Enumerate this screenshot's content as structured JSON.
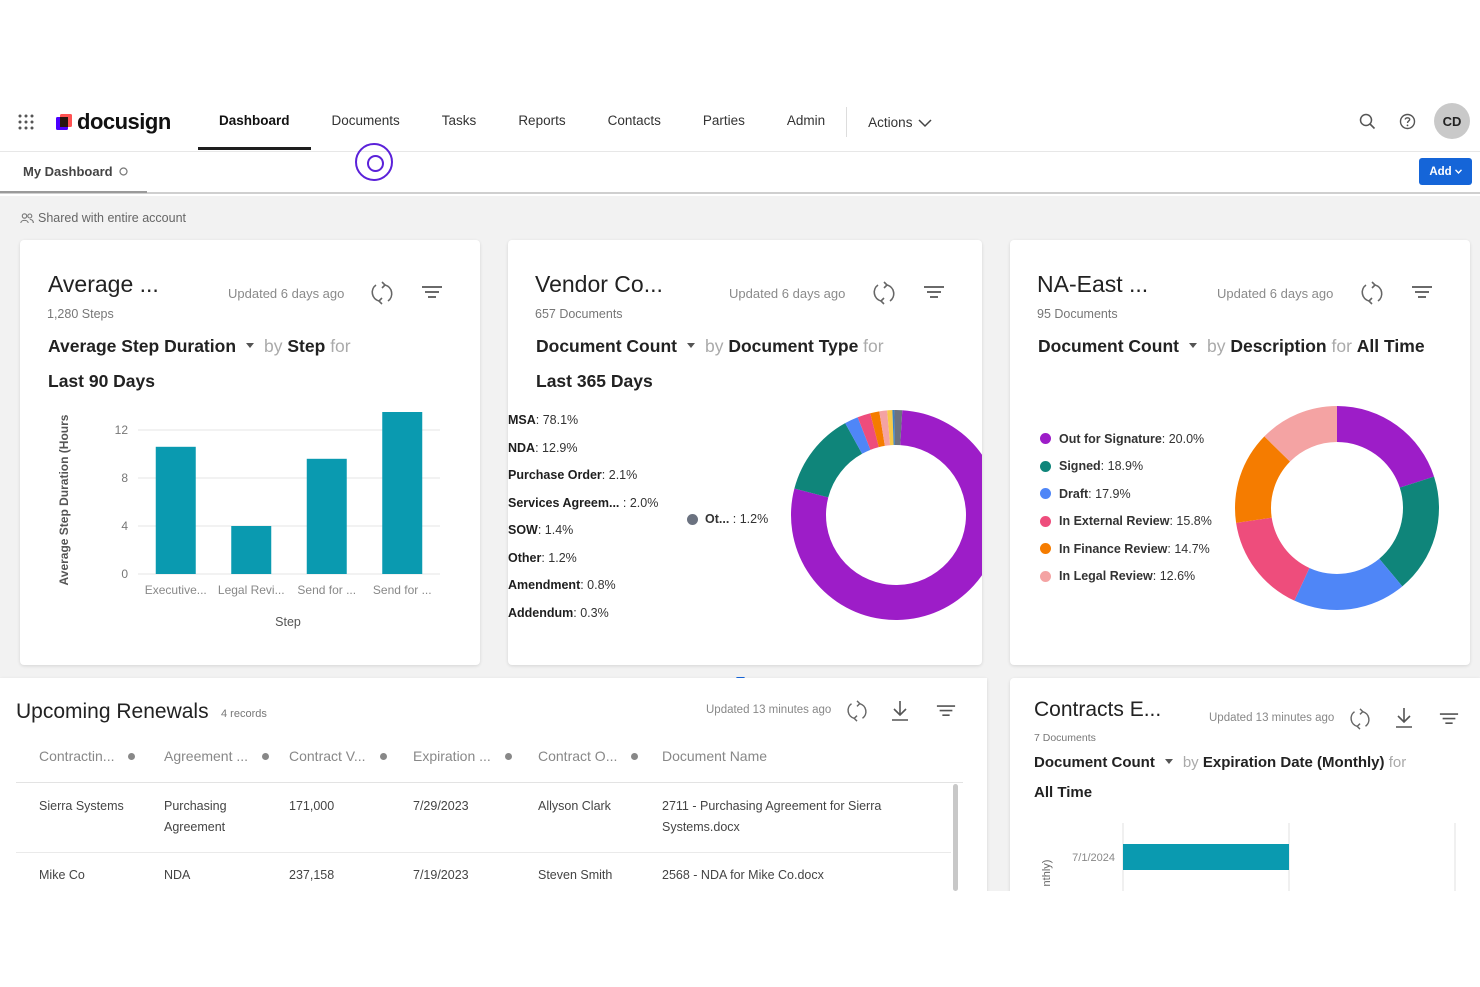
{
  "brand": {
    "name": "docusign"
  },
  "nav": {
    "items": [
      "Dashboard",
      "Documents",
      "Tasks",
      "Reports",
      "Contacts",
      "Parties",
      "Admin"
    ],
    "active": "Dashboard",
    "actions_label": "Actions",
    "avatar_initials": "CD"
  },
  "subbar": {
    "tab_label": "My Dashboard",
    "add_label": "Add"
  },
  "shared_label": "Shared with entire account",
  "cards": {
    "avg": {
      "title": "Average ...",
      "updated": "Updated 6 days ago",
      "subtitle": "1,280 Steps",
      "metric": "Average Step Duration",
      "by_word": "by",
      "group": "Step",
      "for_word": "for",
      "period": "Last 90 Days"
    },
    "vendor": {
      "title": "Vendor Co...",
      "updated": "Updated 6 days ago",
      "subtitle": "657 Documents",
      "metric": "Document Count",
      "by_word": "by",
      "group": "Document Type",
      "for_word": "for",
      "period": "Last 365 Days"
    },
    "na": {
      "title": "NA-East ...",
      "updated": "Updated 6 days ago",
      "subtitle": "95 Documents",
      "metric": "Document Count",
      "by_word": "by",
      "group": "Description",
      "for_word": "for",
      "period": "All Time"
    },
    "renewals": {
      "title": "Upcoming Renewals",
      "records": "4 records",
      "updated": "Updated 13 minutes ago"
    },
    "contracts": {
      "title": "Contracts E...",
      "updated": "Updated 13 minutes ago",
      "subtitle": "7 Documents",
      "metric": "Document Count",
      "by_word": "by",
      "group": "Expiration Date (Monthly)",
      "for_word": "for",
      "period": "All Time"
    }
  },
  "chart_data": [
    {
      "type": "bar",
      "categories": [
        "Executive...",
        "Legal Revi...",
        "Send for ...",
        "Send for ..."
      ],
      "values": [
        10.6,
        4.0,
        9.6,
        13.5
      ],
      "xlabel": "Step",
      "ylabel": "Average Step Duration (Hours",
      "yticks": [
        0,
        4,
        8,
        12
      ],
      "ylim": [
        0,
        14
      ],
      "color": "#0a9ab0"
    },
    {
      "type": "pie",
      "style": "donut",
      "slices": [
        {
          "label": "MSA",
          "pct": "78.1%",
          "value": 78.1,
          "color": "#9d1dc8"
        },
        {
          "label": "NDA",
          "pct": "12.9%",
          "value": 12.9,
          "color": "#0f857a"
        },
        {
          "label": "Purchase Order",
          "pct": "2.1%",
          "value": 2.1,
          "color": "#4f86f7"
        },
        {
          "label": "Services Agreem...",
          "pct": "2.0%",
          "value": 2.0,
          "color": "#ee4d7c"
        },
        {
          "label": "SOW",
          "pct": "1.4%",
          "value": 1.4,
          "color": "#f57c00"
        },
        {
          "label": "Other",
          "pct": "1.2%",
          "value": 1.2,
          "color": "#f4a3a3"
        },
        {
          "label": "Amendment",
          "pct": "0.8%",
          "value": 0.8,
          "color": "#f7c948"
        },
        {
          "label": "Addendum",
          "pct": "0.3%",
          "value": 0.3,
          "color": "#3b82c4"
        },
        {
          "label": "Ot...",
          "pct": "1.2%",
          "value": 1.2,
          "color": "#6b7280"
        }
      ]
    },
    {
      "type": "pie",
      "style": "donut",
      "slices": [
        {
          "label": "Out for Signature",
          "pct": "20.0%",
          "value": 20.0,
          "color": "#9d1dc8"
        },
        {
          "label": "Signed",
          "pct": "18.9%",
          "value": 18.9,
          "color": "#0f857a"
        },
        {
          "label": "Draft",
          "pct": "17.9%",
          "value": 17.9,
          "color": "#4f86f7"
        },
        {
          "label": "In External Review",
          "pct": "15.8%",
          "value": 15.8,
          "color": "#ee4d7c"
        },
        {
          "label": "In Finance Review",
          "pct": "14.7%",
          "value": 14.7,
          "color": "#f57c00"
        },
        {
          "label": "In Legal Review",
          "pct": "12.6%",
          "value": 12.6,
          "color": "#f4a3a3"
        }
      ]
    },
    {
      "type": "bar",
      "orientation": "horizontal",
      "categories": [
        "7/1/2024"
      ],
      "ylabel": "nthly)",
      "color": "#0a9ab0"
    }
  ],
  "table": {
    "columns": [
      "Contractin...",
      "Agreement ...",
      "Contract V...",
      "Expiration ...",
      "Contract O...",
      "Document Name"
    ],
    "rows": [
      [
        "Sierra Systems",
        "Purchasing Agreement",
        "171,000",
        "7/29/2023",
        "Allyson Clark",
        "2711 - Purchasing Agreement for Sierra Systems.docx"
      ],
      [
        "Mike Co",
        "NDA",
        "237,158",
        "7/19/2023",
        "Steven Smith",
        "2568 - NDA for Mike Co.docx"
      ]
    ]
  }
}
